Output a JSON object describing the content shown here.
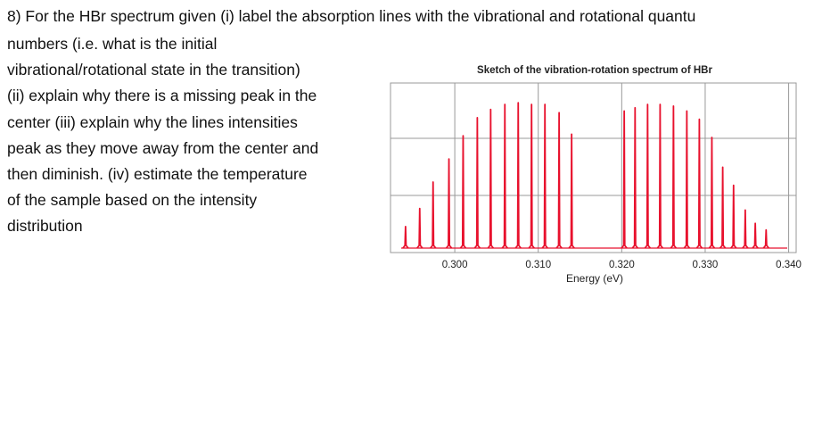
{
  "question": {
    "lines": [
      "8) For the HBr spectrum given (i) label the absorption lines with the vibrational and rotational quantu",
      "numbers (i.e. what is the initial",
      "vibrational/rotational state in the transition)",
      "(ii) explain why there is a missing peak in the",
      "center (iii) explain why the lines intensities",
      "peak as they move away from the center and",
      "then diminish.  (iv) estimate the temperature",
      "of the sample based on the intensity",
      "distribution"
    ]
  },
  "chart_data": {
    "type": "spectrum",
    "title": "Sketch of the vibration-rotation spectrum of HBr",
    "x_label": "Energy (eV)",
    "color": "#e8112d",
    "grid": true,
    "x": [
      0.2941,
      0.2958,
      0.2974,
      0.2993,
      0.301,
      0.3027,
      0.3043,
      0.306,
      0.3076,
      0.3092,
      0.3108,
      0.3125,
      0.314,
      0.3203,
      0.3216,
      0.3231,
      0.3246,
      0.3262,
      0.3278,
      0.3293,
      0.3308,
      0.3321,
      0.3334,
      0.3348,
      0.336,
      0.3373
    ],
    "values": [
      0.13,
      0.24,
      0.4,
      0.54,
      0.68,
      0.79,
      0.84,
      0.87,
      0.88,
      0.87,
      0.87,
      0.82,
      0.69,
      0.83,
      0.85,
      0.87,
      0.87,
      0.86,
      0.83,
      0.78,
      0.67,
      0.49,
      0.38,
      0.23,
      0.15,
      0.11
    ],
    "xlim": [
      0.2923,
      0.3409
    ],
    "ylim": [
      0,
      1
    ],
    "xticks": [
      {
        "value": 0.3,
        "label": "0.300"
      },
      {
        "value": 0.31,
        "label": "0.310"
      },
      {
        "value": 0.32,
        "label": "0.320"
      },
      {
        "value": 0.33,
        "label": "0.330"
      },
      {
        "value": 0.34,
        "label": "0.340"
      }
    ]
  }
}
